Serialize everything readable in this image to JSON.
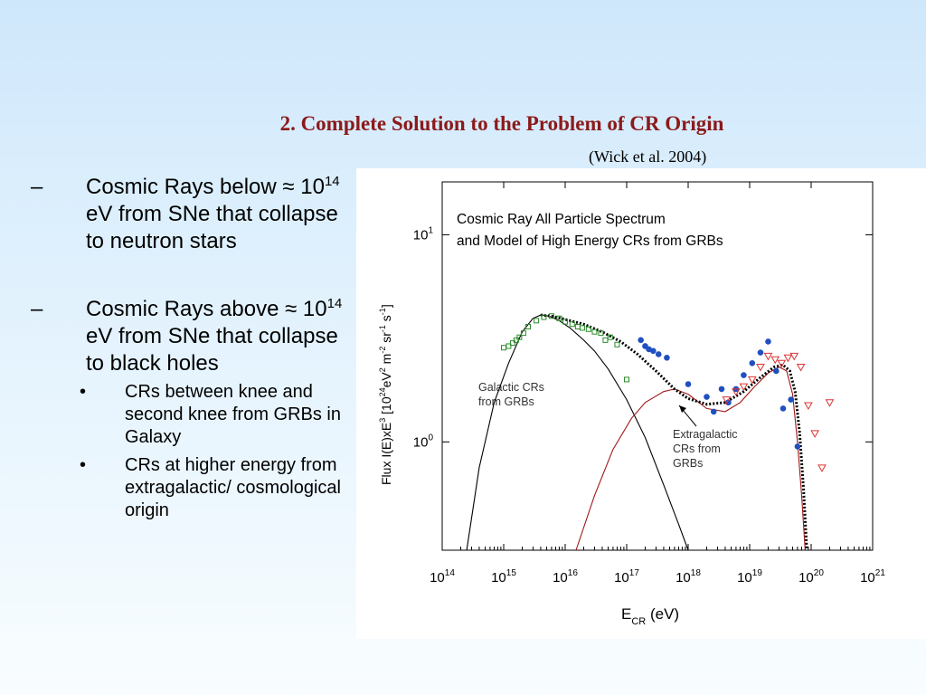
{
  "slide": {
    "title": "2. Complete Solution to the Problem of CR Origin",
    "citation": "(Wick et al. 2004)"
  },
  "bullets": {
    "b1": {
      "dash": "–",
      "pre": "Cosmic Rays below ≈ 10",
      "sup": "14",
      "post": " eV from SNe that collapse to neutron stars"
    },
    "b2": {
      "dash": "–",
      "pre": "Cosmic Rays above ≈ 10",
      "sup": "14",
      "post": " eV from SNe that collapse to black holes"
    },
    "sub1": {
      "dot": "•",
      "text": "CRs between knee and second knee from GRBs in Galaxy"
    },
    "sub2": {
      "dot": "•",
      "text": "CRs at higher energy from extragalactic/ cosmological origin"
    }
  },
  "chart_data": {
    "type": "line",
    "title_line1": "Cosmic Ray All Particle Spectrum",
    "title_line2": "and Model of High Energy CRs from GRBs",
    "ylabel": {
      "a": "Flux I(E)xE",
      "b": "3",
      "c": " [10",
      "d": "24",
      "e": "eV",
      "f": "2",
      "g": " m",
      "h": "-2",
      "i": " sr",
      "j": "-1",
      "k": " s",
      "l": "-1",
      "m": "]"
    },
    "xlabel": {
      "main": "E",
      "sub": "CR",
      "rest": " (eV)"
    },
    "x_scale": "log",
    "y_scale": "log",
    "xlim": [
      100000000000000.0,
      1e+21
    ],
    "ylim": [
      0.3,
      18
    ],
    "x_ticks": [
      {
        "v": 100000000000000.0,
        "base": "10",
        "exp": "14"
      },
      {
        "v": 1000000000000000.0,
        "base": "10",
        "exp": "15"
      },
      {
        "v": 1e+16,
        "base": "10",
        "exp": "16"
      },
      {
        "v": 1e+17,
        "base": "10",
        "exp": "17"
      },
      {
        "v": 1e+18,
        "base": "10",
        "exp": "18"
      },
      {
        "v": 1e+19,
        "base": "10",
        "exp": "19"
      },
      {
        "v": 1e+20,
        "base": "10",
        "exp": "20"
      },
      {
        "v": 1e+21,
        "base": "10",
        "exp": "21"
      }
    ],
    "y_ticks": [
      {
        "v": 1,
        "base": "10",
        "exp": "0"
      },
      {
        "v": 10,
        "base": "10",
        "exp": "1"
      }
    ],
    "annotations": {
      "galactic": [
        "Galactic CRs",
        "from GRBs"
      ],
      "extragalactic": [
        "Extragalactic",
        "CRs from",
        "GRBs"
      ]
    },
    "series": [
      {
        "color": "#000000",
        "points": [
          [
            250000000000000.0,
            0.3
          ],
          [
            400000000000000.0,
            0.75
          ],
          [
            700000000000000.0,
            1.55
          ],
          [
            1200000000000000.0,
            2.4
          ],
          [
            2000000000000000.0,
            3.4
          ],
          [
            3000000000000000.0,
            3.95
          ],
          [
            4000000000000000.0,
            4.1
          ],
          [
            5500000000000000.0,
            4.05
          ],
          [
            8000000000000000.0,
            3.85
          ],
          [
            1.2e+16,
            3.55
          ],
          [
            2e+16,
            3.1
          ],
          [
            3e+16,
            2.75
          ],
          [
            5e+16,
            2.25
          ],
          [
            1e+17,
            1.6
          ],
          [
            2e+17,
            1.05
          ],
          [
            4e+17,
            0.62
          ],
          [
            7e+17,
            0.4
          ],
          [
            1e+18,
            0.3
          ]
        ]
      },
      {
        "color": "#a01818",
        "points": [
          [
            1.5e+16,
            0.3
          ],
          [
            3e+16,
            0.55
          ],
          [
            6e+16,
            0.92
          ],
          [
            1.2e+17,
            1.3
          ],
          [
            2e+17,
            1.55
          ],
          [
            4e+17,
            1.75
          ],
          [
            6e+17,
            1.8
          ],
          [
            1e+18,
            1.7
          ],
          [
            2e+18,
            1.45
          ],
          [
            4e+18,
            1.4
          ],
          [
            7e+18,
            1.55
          ],
          [
            1.2e+19,
            1.85
          ],
          [
            2e+19,
            2.15
          ],
          [
            3e+19,
            2.3
          ],
          [
            4e+19,
            2.2
          ],
          [
            5e+19,
            1.7
          ],
          [
            6e+19,
            1.0
          ],
          [
            7e+19,
            0.55
          ],
          [
            8e+19,
            0.3
          ]
        ]
      },
      {
        "color": "#000000",
        "dashed": true,
        "points": [
          [
            4000000000000000.0,
            4.1
          ],
          [
            6000000000000000.0,
            4.05
          ],
          [
            1e+16,
            3.9
          ],
          [
            2e+16,
            3.7
          ],
          [
            4e+16,
            3.4
          ],
          [
            8e+16,
            3.05
          ],
          [
            1.5e+17,
            2.65
          ],
          [
            3e+17,
            2.2
          ],
          [
            6e+17,
            1.8
          ],
          [
            1e+18,
            1.62
          ],
          [
            2e+18,
            1.52
          ],
          [
            4e+18,
            1.55
          ],
          [
            8e+18,
            1.75
          ],
          [
            1.5e+19,
            2.05
          ],
          [
            2.5e+19,
            2.3
          ],
          [
            3.5e+19,
            2.35
          ],
          [
            4.5e+19,
            2.2
          ],
          [
            5.5e+19,
            1.75
          ],
          [
            6.5e+19,
            1.1
          ],
          [
            7.5e+19,
            0.6
          ],
          [
            8.5e+19,
            0.3
          ]
        ]
      }
    ],
    "data_points": [
      {
        "color": "#2a8a2a",
        "marker": "square",
        "points": [
          [
            1000000000000000.0,
            2.85
          ],
          [
            1200000000000000.0,
            2.9
          ],
          [
            1400000000000000.0,
            3.0
          ],
          [
            1600000000000000.0,
            3.1
          ],
          [
            1800000000000000.0,
            3.2
          ],
          [
            2100000000000000.0,
            3.35
          ],
          [
            2500000000000000.0,
            3.6
          ],
          [
            3400000000000000.0,
            3.85
          ],
          [
            4500000000000000.0,
            4.0
          ],
          [
            6000000000000000.0,
            4.05
          ],
          [
            8000000000000000.0,
            3.95
          ],
          [
            1e+16,
            3.8
          ],
          [
            1.3e+16,
            3.7
          ],
          [
            1.6e+16,
            3.6
          ],
          [
            1.9e+16,
            3.55
          ],
          [
            2.4e+16,
            3.5
          ],
          [
            3e+16,
            3.4
          ],
          [
            3.8e+16,
            3.35
          ],
          [
            4.5e+16,
            3.1
          ],
          [
            5.4e+16,
            3.2
          ],
          [
            7e+16,
            2.95
          ],
          [
            1e+17,
            2.0
          ]
        ]
      },
      {
        "color": "#2050c0",
        "marker": "circle",
        "points": [
          [
            1.7e+17,
            3.1
          ],
          [
            2e+17,
            2.9
          ],
          [
            2.3e+17,
            2.8
          ],
          [
            2.7e+17,
            2.75
          ],
          [
            3.3e+17,
            2.65
          ],
          [
            4.5e+17,
            2.55
          ],
          [
            1e+18,
            1.9
          ],
          [
            2e+18,
            1.65
          ],
          [
            2.6e+18,
            1.4
          ],
          [
            3.5e+18,
            1.8
          ],
          [
            4.5e+18,
            1.55
          ],
          [
            6e+18,
            1.8
          ],
          [
            8e+18,
            2.1
          ],
          [
            1.1e+19,
            2.4
          ],
          [
            1.5e+19,
            2.7
          ],
          [
            2e+19,
            3.05
          ],
          [
            2.7e+19,
            2.2
          ],
          [
            3.5e+19,
            1.45
          ],
          [
            4.7e+19,
            1.6
          ],
          [
            6e+19,
            0.95
          ]
        ]
      },
      {
        "color": "#dd3333",
        "marker": "triangle",
        "points": [
          [
            4.2e+18,
            1.6
          ],
          [
            6e+18,
            1.75
          ],
          [
            8e+18,
            1.85
          ],
          [
            1.1e+19,
            2.0
          ],
          [
            1.5e+19,
            2.3
          ],
          [
            2e+19,
            2.6
          ],
          [
            2.6e+19,
            2.5
          ],
          [
            3.3e+19,
            2.4
          ],
          [
            4.2e+19,
            2.55
          ],
          [
            5.3e+19,
            2.6
          ],
          [
            6.8e+19,
            2.3
          ],
          [
            9e+19,
            1.5
          ],
          [
            1.15e+20,
            1.1
          ],
          [
            1.5e+20,
            0.75
          ],
          [
            2e+20,
            1.55
          ]
        ]
      }
    ]
  }
}
